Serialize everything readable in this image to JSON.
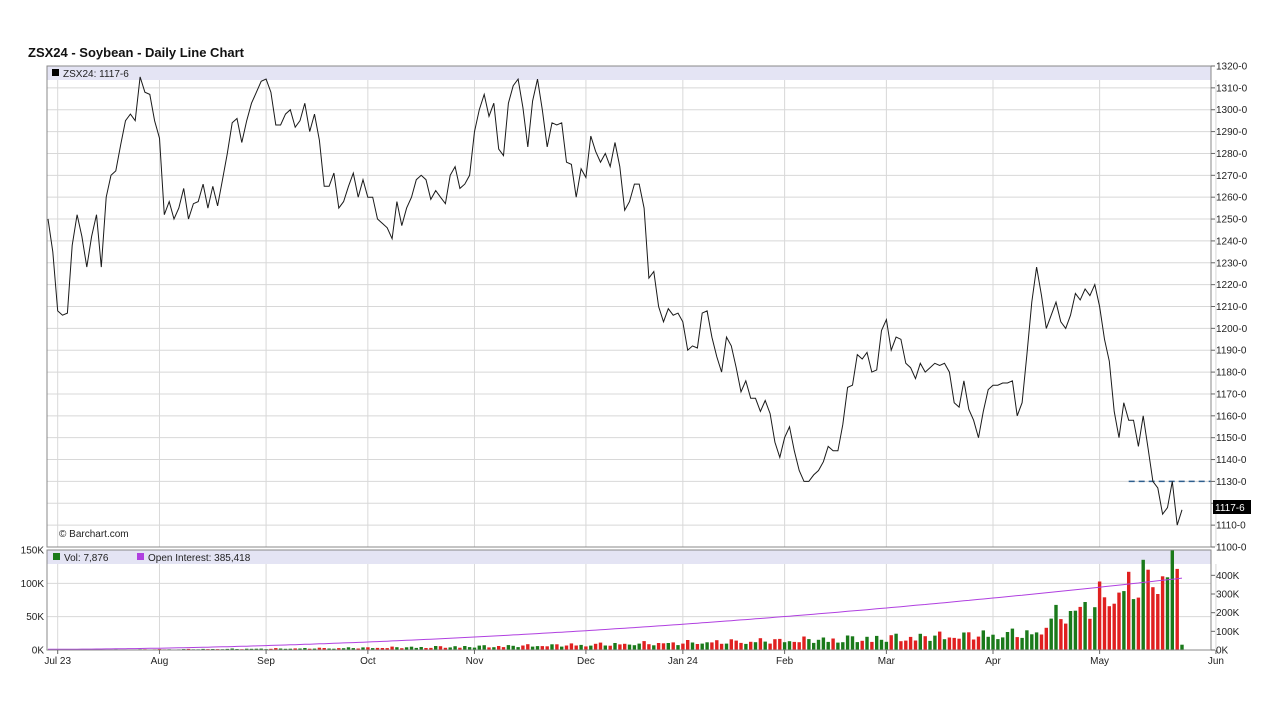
{
  "title": "ZSX24 - Soybean - Daily Line Chart",
  "price_legend": "ZSX24: 1117-6",
  "last_price_label": "1117-6",
  "copyright": "© Barchart.com",
  "vol_legend": "Vol: 7,876",
  "oi_legend": "Open Interest: 385,418",
  "colors": {
    "price_line": "#1a1a1a",
    "support_line": "#2e5e8e",
    "vol_up": "#1a7a1a",
    "vol_down": "#e02020",
    "open_interest": "#b040e0",
    "legend_band": "#e4e4f4",
    "grid": "#d8d8d8"
  },
  "chart_data": [
    {
      "type": "line",
      "name": "price",
      "ylim": [
        1100,
        1320
      ],
      "y_ticks": [
        1100,
        1110,
        1120,
        1130,
        1140,
        1150,
        1160,
        1170,
        1180,
        1190,
        1200,
        1210,
        1220,
        1230,
        1240,
        1250,
        1260,
        1270,
        1280,
        1290,
        1300,
        1310,
        1320
      ],
      "y_tick_labels": [
        "1100-0",
        "1110-0",
        "1120-0",
        "1130-0",
        "1140-0",
        "1150-0",
        "1160-0",
        "1170-0",
        "1180-0",
        "1190-0",
        "1200-0",
        "1210-0",
        "1220-0",
        "1230-0",
        "1240-0",
        "1250-0",
        "1260-0",
        "1270-0",
        "1280-0",
        "1290-0",
        "1300-0",
        "1310-0",
        "1320-0"
      ],
      "support_level": 1130,
      "support_start": 223,
      "series": [
        {
          "values": [
            1250,
            1235,
            1208,
            1206,
            1207,
            1238,
            1252,
            1242,
            1228,
            1242,
            1252,
            1228,
            1260,
            1270,
            1272,
            1284,
            1295,
            1298,
            1295,
            1315,
            1308,
            1307,
            1295,
            1287,
            1252,
            1258,
            1250,
            1255,
            1264,
            1250,
            1257,
            1258,
            1266,
            1255,
            1265,
            1256,
            1268,
            1280,
            1294,
            1296,
            1285,
            1295,
            1303,
            1308,
            1313,
            1314,
            1308,
            1293,
            1293,
            1298,
            1300,
            1292,
            1295,
            1303,
            1290,
            1298,
            1286,
            1265,
            1265,
            1271,
            1255,
            1258,
            1265,
            1271,
            1260,
            1268,
            1260,
            1260,
            1250,
            1248,
            1246,
            1241,
            1258,
            1247,
            1255,
            1260,
            1268,
            1270,
            1268,
            1259,
            1263,
            1260,
            1257,
            1270,
            1274,
            1264,
            1266,
            1270,
            1290,
            1300,
            1307,
            1297,
            1303,
            1282,
            1279,
            1303,
            1311,
            1314,
            1301,
            1283,
            1304,
            1314,
            1300,
            1283,
            1294,
            1293,
            1294,
            1276,
            1275,
            1260,
            1273,
            1269,
            1288,
            1281,
            1276,
            1280,
            1274,
            1285,
            1274,
            1254,
            1258,
            1266,
            1266,
            1255,
            1223,
            1226,
            1210,
            1203,
            1209,
            1206,
            1207,
            1203,
            1190,
            1192,
            1191,
            1207,
            1208,
            1196,
            1187,
            1180,
            1196,
            1192,
            1182,
            1171,
            1176,
            1168,
            1168,
            1162,
            1167,
            1161,
            1148,
            1141,
            1150,
            1155,
            1144,
            1135,
            1130,
            1130,
            1133,
            1135,
            1139,
            1146,
            1144,
            1144,
            1156,
            1173,
            1174,
            1188,
            1186,
            1189,
            1180,
            1181,
            1199,
            1204,
            1190,
            1196,
            1195,
            1184,
            1182,
            1177,
            1184,
            1180,
            1182,
            1184,
            1183,
            1184,
            1180,
            1166,
            1164,
            1176,
            1163,
            1158,
            1150,
            1162,
            1172,
            1174,
            1174,
            1175,
            1175,
            1176,
            1160,
            1166,
            1188,
            1212,
            1228,
            1215,
            1200,
            1206,
            1212,
            1203,
            1200,
            1206,
            1216,
            1213,
            1218,
            1215,
            1220,
            1210,
            1195,
            1185,
            1162,
            1150,
            1166,
            1158,
            1158,
            1146,
            1160,
            1145,
            1130,
            1127,
            1115,
            1118,
            1130,
            1110,
            1117
          ]
        }
      ]
    },
    {
      "type": "bar",
      "name": "volume",
      "ylim": [
        0,
        150000
      ],
      "y_tick_labels": [
        "0K",
        "50K",
        "100K",
        "150K"
      ],
      "oi_ylim": [
        0,
        450000
      ],
      "oi_tick_labels": [
        "0K",
        "100K",
        "200K",
        "300K",
        "400K"
      ],
      "x_labels": [
        "Jul 23",
        "Aug",
        "Sep",
        "Oct",
        "Nov",
        "Dec",
        "Jan 24",
        "Feb",
        "Mar",
        "Apr",
        "May",
        "Jun"
      ],
      "x_label_days": [
        2,
        23,
        45,
        66,
        88,
        111,
        131,
        152,
        173,
        195,
        217,
        241
      ],
      "volume_start": 30000,
      "oi_start": 4000,
      "oi_end": 385000
    }
  ]
}
